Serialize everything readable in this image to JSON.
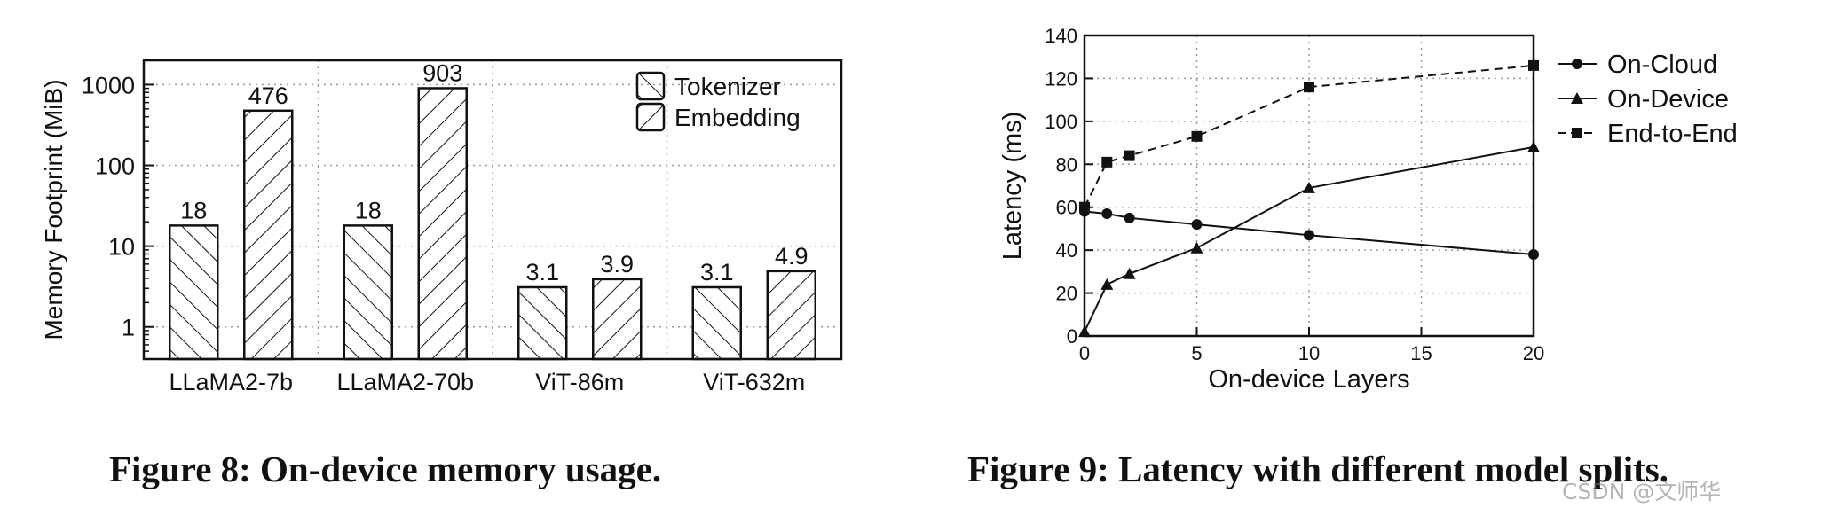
{
  "chart_data": [
    {
      "type": "bar",
      "title": "",
      "ylabel": "Memory Footprint (MiB)",
      "xlabel": "",
      "yscale": "log",
      "ylim": [
        0.4,
        2000
      ],
      "yticks": [
        1,
        10,
        100,
        1000
      ],
      "ytick_labels": [
        "1",
        "10",
        "100",
        "1000"
      ],
      "grid": true,
      "legend_position": "top-right",
      "categories": [
        "LLaMA2-7b",
        "LLaMA2-70b",
        "ViT-86m",
        "ViT-632m"
      ],
      "series": [
        {
          "name": "Tokenizer",
          "values": [
            18,
            18,
            3.1,
            3.1
          ],
          "labels": [
            "18",
            "18",
            "3.1",
            "3.1"
          ],
          "hatch": "backslash"
        },
        {
          "name": "Embedding",
          "values": [
            476,
            903,
            3.9,
            4.9
          ],
          "labels": [
            "476",
            "903",
            "3.9",
            "4.9"
          ],
          "hatch": "slash"
        }
      ]
    },
    {
      "type": "line",
      "title": "",
      "xlabel": "On-device Layers",
      "ylabel": "Latency (ms)",
      "xlim": [
        0,
        20
      ],
      "ylim": [
        0,
        140
      ],
      "xticks": [
        0,
        5,
        10,
        15,
        20
      ],
      "yticks": [
        0,
        20,
        40,
        60,
        80,
        100,
        120,
        140
      ],
      "grid": true,
      "legend_position": "top-right",
      "x": [
        0,
        1,
        2,
        5,
        10,
        20
      ],
      "series": [
        {
          "name": "On-Cloud",
          "values": [
            58,
            57,
            55,
            52,
            47,
            38
          ],
          "marker": "circle",
          "line": "solid"
        },
        {
          "name": "On-Device",
          "values": [
            2,
            24,
            29,
            41,
            69,
            88
          ],
          "marker": "triangle",
          "line": "solid"
        },
        {
          "name": "End-to-End",
          "values": [
            60,
            81,
            84,
            93,
            116,
            126
          ],
          "marker": "square",
          "line": "dashed"
        }
      ]
    }
  ],
  "captions": {
    "fig8": "Figure 8: On-device memory usage.",
    "fig9": "Figure 9: Latency with different model splits."
  },
  "watermark": "CSDN @文师华"
}
